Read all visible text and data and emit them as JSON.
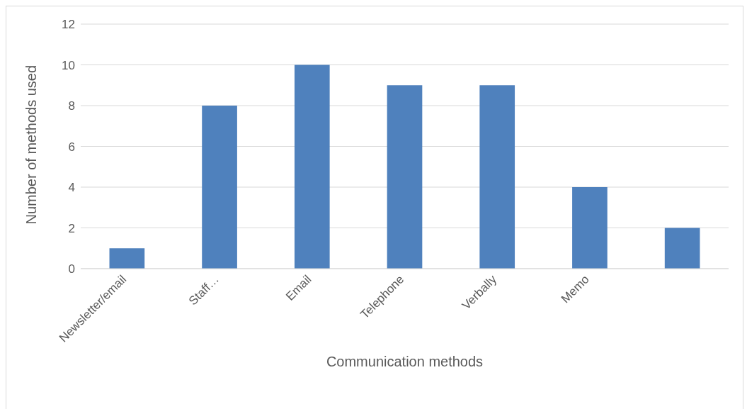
{
  "chart_data": {
    "type": "bar",
    "xlabel": "Communication methods",
    "ylabel": "Number of methods used",
    "categories": [
      "Newsletter/email",
      "Staff…",
      "Email",
      "Telephone",
      "Verbally",
      "Memo",
      null
    ],
    "values": [
      1,
      8,
      10,
      9,
      9,
      4,
      2
    ],
    "color": "#4f81bd",
    "ylim": [
      0,
      12
    ],
    "yticks": [
      0,
      2,
      4,
      6,
      8,
      10,
      12
    ],
    "grid": "y"
  }
}
